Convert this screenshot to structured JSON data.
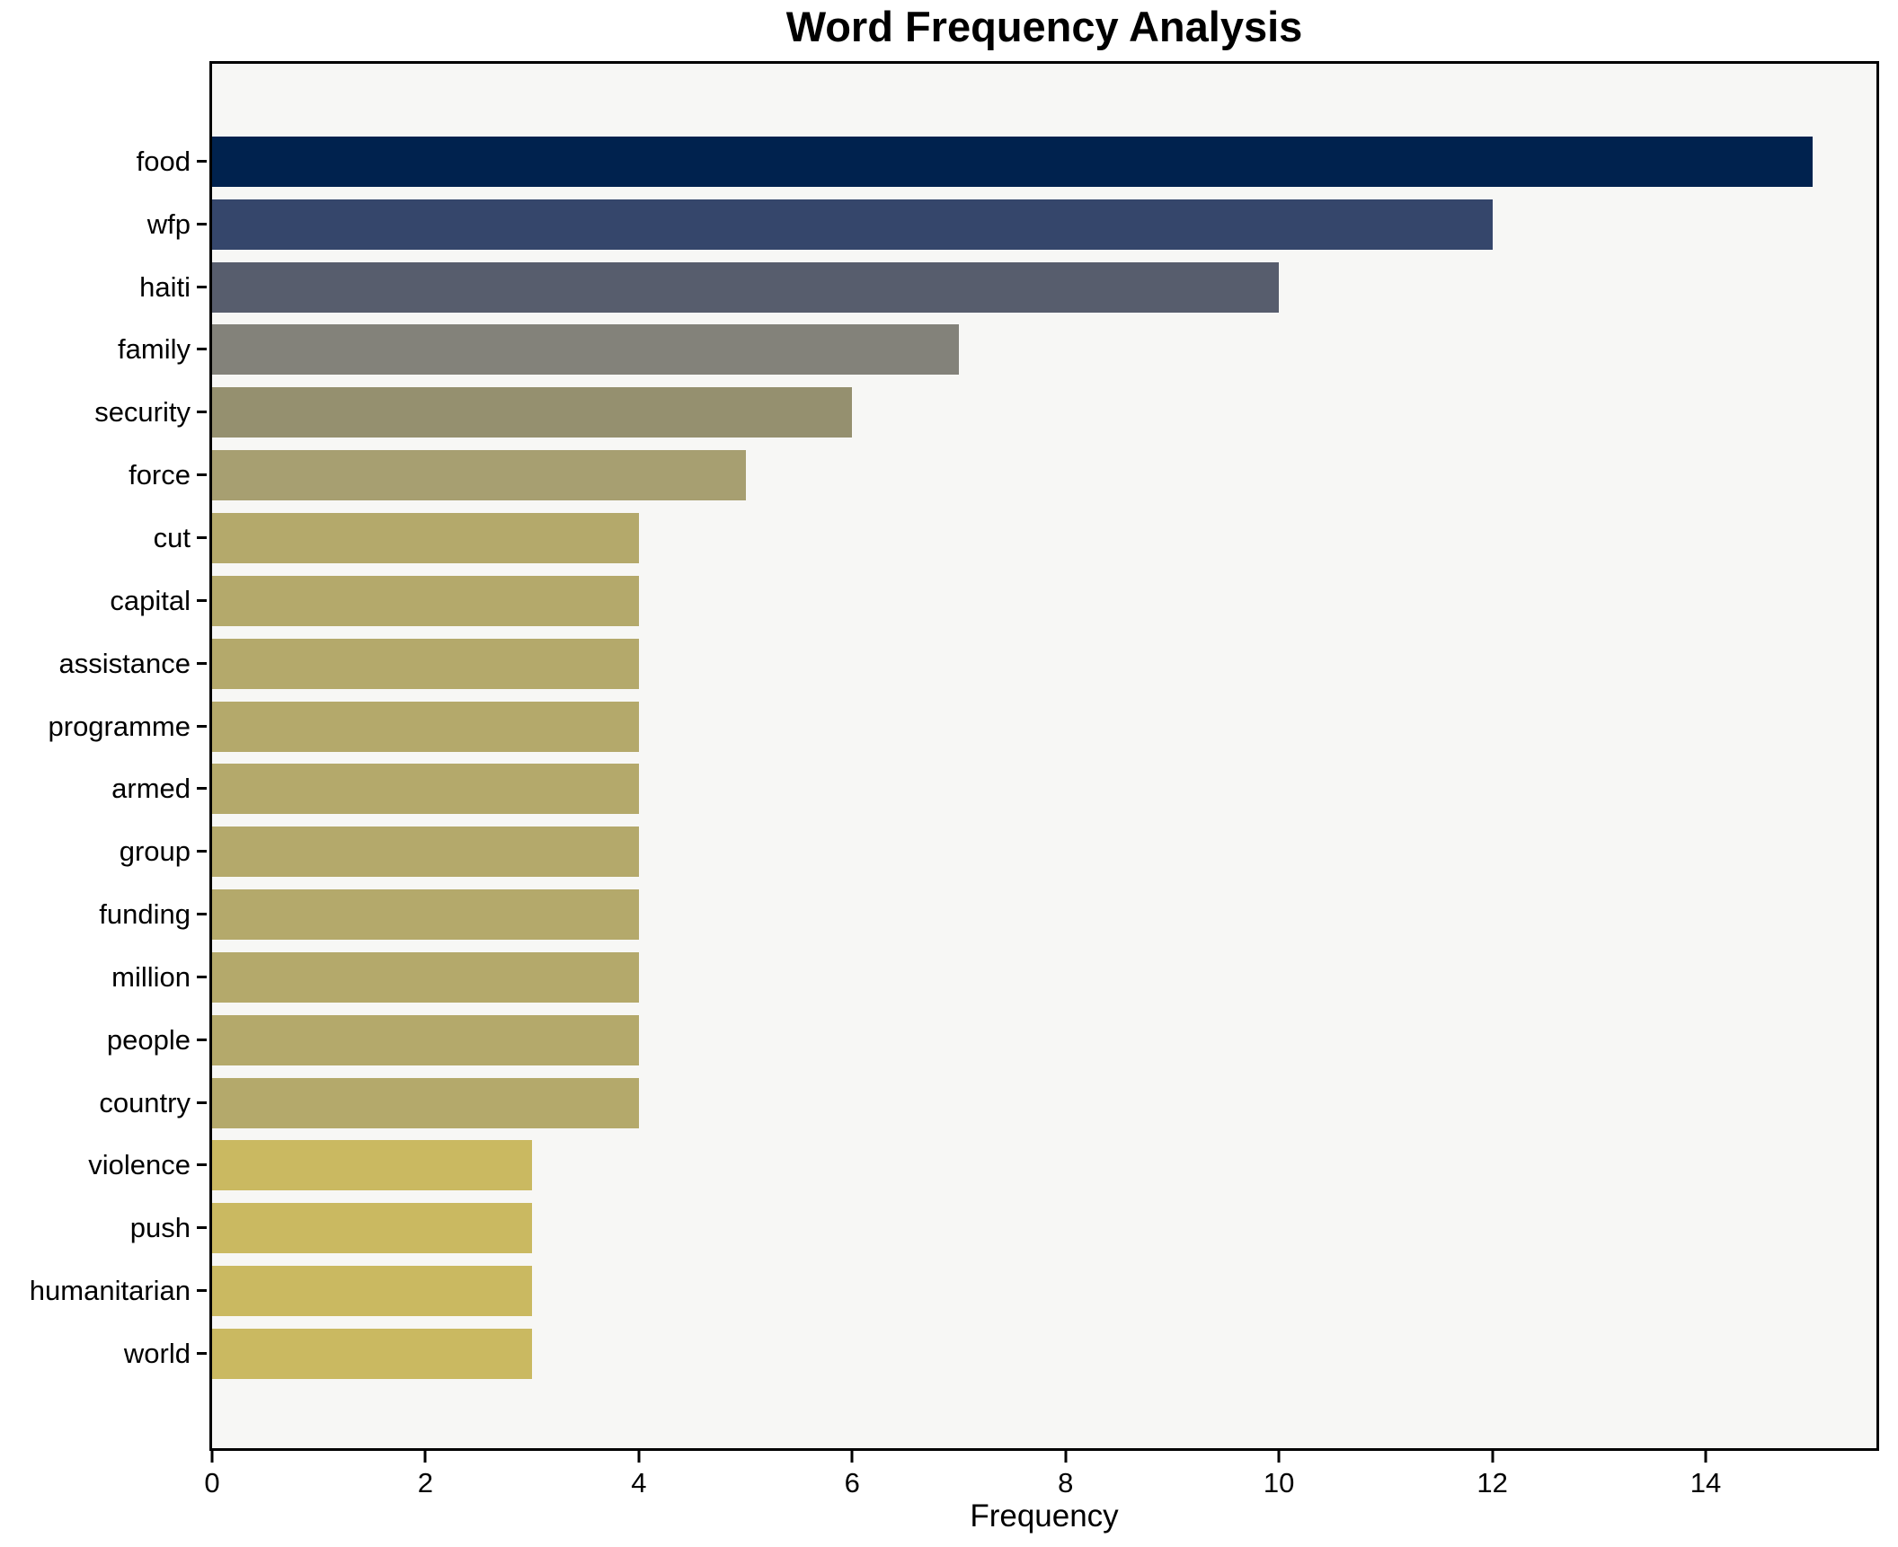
{
  "figure": {
    "title": "Word Frequency Analysis",
    "xlabel": "Frequency",
    "background": "#ffffff",
    "plot_background": "#f7f7f5",
    "spine_color": "#000000"
  },
  "chart_data": {
    "type": "bar",
    "orientation": "horizontal",
    "title": "Word Frequency Analysis",
    "xlabel": "Frequency",
    "ylabel": "",
    "categories": [
      "food",
      "wfp",
      "haiti",
      "family",
      "security",
      "force",
      "cut",
      "capital",
      "assistance",
      "programme",
      "armed",
      "group",
      "funding",
      "million",
      "people",
      "country",
      "violence",
      "push",
      "humanitarian",
      "world"
    ],
    "values": [
      15,
      12,
      10,
      7,
      6,
      5,
      4,
      4,
      4,
      4,
      4,
      4,
      4,
      4,
      4,
      4,
      3,
      3,
      3,
      3
    ],
    "bar_colors": [
      "#00224e",
      "#35466b",
      "#575d6d",
      "#83827a",
      "#95906f",
      "#a79f71",
      "#b4a96b",
      "#b4a96b",
      "#b4a96b",
      "#b4a96b",
      "#b4a96b",
      "#b4a96b",
      "#b4a96b",
      "#b4a96b",
      "#b4a96b",
      "#b4a96b",
      "#cab961",
      "#cab961",
      "#cab961",
      "#cab961"
    ],
    "xlim": [
      0,
      15.6
    ],
    "xticks": [
      0,
      2,
      4,
      6,
      8,
      10,
      12,
      14
    ],
    "grid": false,
    "legend": null,
    "bar_height_fraction": 0.8
  }
}
